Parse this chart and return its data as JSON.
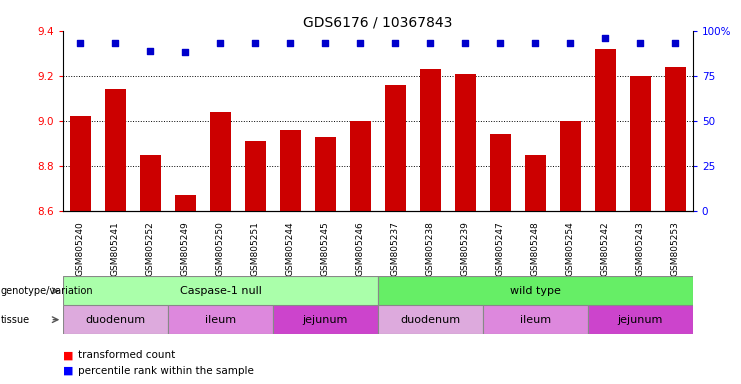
{
  "title": "GDS6176 / 10367843",
  "samples": [
    "GSM805240",
    "GSM805241",
    "GSM805252",
    "GSM805249",
    "GSM805250",
    "GSM805251",
    "GSM805244",
    "GSM805245",
    "GSM805246",
    "GSM805237",
    "GSM805238",
    "GSM805239",
    "GSM805247",
    "GSM805248",
    "GSM805254",
    "GSM805242",
    "GSM805243",
    "GSM805253"
  ],
  "bar_values": [
    9.02,
    9.14,
    8.85,
    8.67,
    9.04,
    8.91,
    8.96,
    8.93,
    9.0,
    9.16,
    9.23,
    9.21,
    8.94,
    8.85,
    9.0,
    9.32,
    9.2,
    9.24
  ],
  "percentile_values": [
    93,
    93,
    89,
    88,
    93,
    93,
    93,
    93,
    93,
    93,
    93,
    93,
    93,
    93,
    93,
    96,
    93,
    93
  ],
  "ylim": [
    8.6,
    9.4
  ],
  "right_ylim": [
    0,
    100
  ],
  "right_yticks": [
    0,
    25,
    50,
    75,
    100
  ],
  "right_yticklabels": [
    "0",
    "25",
    "50",
    "75",
    "100%"
  ],
  "left_yticks": [
    8.6,
    8.8,
    9.0,
    9.2,
    9.4
  ],
  "bar_color": "#cc0000",
  "percentile_color": "#0000cc",
  "genotype_groups": [
    {
      "label": "Caspase-1 null",
      "start": 0,
      "end": 9,
      "color": "#aaffaa"
    },
    {
      "label": "wild type",
      "start": 9,
      "end": 18,
      "color": "#66ee66"
    }
  ],
  "tissue_groups": [
    {
      "label": "duodenum",
      "start": 0,
      "end": 3,
      "color": "#ddaadd"
    },
    {
      "label": "ileum",
      "start": 3,
      "end": 6,
      "color": "#dd88dd"
    },
    {
      "label": "jejunum",
      "start": 6,
      "end": 9,
      "color": "#cc55cc"
    },
    {
      "label": "duodenum",
      "start": 9,
      "end": 12,
      "color": "#ddaadd"
    },
    {
      "label": "ileum",
      "start": 12,
      "end": 15,
      "color": "#dd88dd"
    },
    {
      "label": "jejunum",
      "start": 15,
      "end": 18,
      "color": "#cc55cc"
    }
  ],
  "title_fontsize": 10,
  "bar_width": 0.6
}
